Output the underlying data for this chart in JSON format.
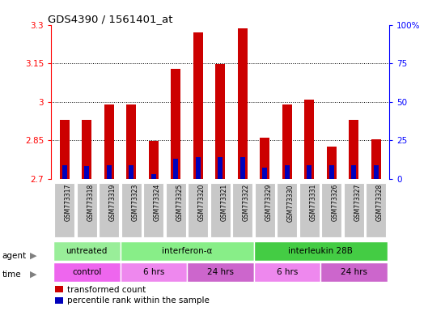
{
  "title": "GDS4390 / 1561401_at",
  "samples": [
    "GSM773317",
    "GSM773318",
    "GSM773319",
    "GSM773323",
    "GSM773324",
    "GSM773325",
    "GSM773320",
    "GSM773321",
    "GSM773322",
    "GSM773329",
    "GSM773330",
    "GSM773331",
    "GSM773326",
    "GSM773327",
    "GSM773328"
  ],
  "red_values": [
    2.93,
    2.93,
    2.99,
    2.99,
    2.848,
    3.13,
    3.27,
    3.148,
    3.285,
    2.86,
    2.99,
    3.01,
    2.825,
    2.93,
    2.855
  ],
  "blue_values": [
    2.755,
    2.752,
    2.755,
    2.755,
    2.718,
    2.778,
    2.785,
    2.785,
    2.785,
    2.745,
    2.755,
    2.755,
    2.755,
    2.755,
    2.755
  ],
  "ymin": 2.7,
  "ymax": 3.3,
  "yticks_left": [
    2.7,
    2.85,
    3.0,
    3.15,
    3.3
  ],
  "ytick_labels_left": [
    "2.7",
    "2.85",
    "3",
    "3.15",
    "3.3"
  ],
  "yticks_right": [
    0,
    25,
    50,
    75,
    100
  ],
  "ytick_labels_right": [
    "0",
    "25",
    "50",
    "75",
    "100%"
  ],
  "grid_lines": [
    2.85,
    3.0,
    3.15
  ],
  "bar_width": 0.45,
  "blue_bar_width": 0.22,
  "red_color": "#CC0000",
  "blue_color": "#0000BB",
  "bg_color": "#ffffff",
  "xtick_bg": "#C8C8C8",
  "agent_groups": [
    {
      "label": "untreated",
      "start": 0,
      "end": 3,
      "color": "#99EE99"
    },
    {
      "label": "interferon-α",
      "start": 3,
      "end": 9,
      "color": "#88EE88"
    },
    {
      "label": "interleukin 28B",
      "start": 9,
      "end": 15,
      "color": "#44CC44"
    }
  ],
  "time_groups": [
    {
      "label": "control",
      "start": 0,
      "end": 3,
      "color": "#EE66EE"
    },
    {
      "label": "6 hrs",
      "start": 3,
      "end": 6,
      "color": "#EE88EE"
    },
    {
      "label": "24 hrs",
      "start": 6,
      "end": 9,
      "color": "#CC66CC"
    },
    {
      "label": "6 hrs",
      "start": 9,
      "end": 12,
      "color": "#EE88EE"
    },
    {
      "label": "24 hrs",
      "start": 12,
      "end": 15,
      "color": "#CC66CC"
    }
  ],
  "legend_red": "transformed count",
  "legend_blue": "percentile rank within the sample"
}
